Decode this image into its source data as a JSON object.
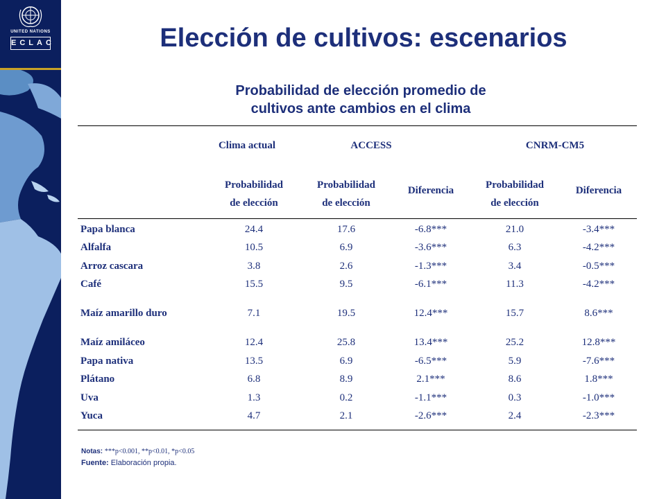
{
  "sidebar": {
    "org_label": "United Nations",
    "eclac_label": "ECLAC"
  },
  "header": {
    "title": "Elección de cultivos: escenarios"
  },
  "table": {
    "caption_line1": "Probabilidad de elección promedio de",
    "caption_line2": "cultivos ante cambios en el clima",
    "groups": [
      "Clima actual",
      "ACCESS",
      "CNRM-CM5"
    ],
    "subheaders": [
      [
        "Probabilidad",
        "de elección"
      ],
      [
        "Probabilidad",
        "de elección"
      ],
      [
        "Diferencia"
      ],
      [
        "Probabilidad",
        "de elección"
      ],
      [
        "Diferencia"
      ]
    ],
    "rows": [
      {
        "crop": "Papa blanca",
        "current": "24.4",
        "access_prob": "17.6",
        "access_diff": "-6.8***",
        "cnrm_prob": "21.0",
        "cnrm_diff": "-3.4***"
      },
      {
        "crop": "Alfalfa",
        "current": "10.5",
        "access_prob": "6.9",
        "access_diff": "-3.6***",
        "cnrm_prob": "6.3",
        "cnrm_diff": "-4.2***"
      },
      {
        "crop": "Arroz cascara",
        "current": "3.8",
        "access_prob": "2.6",
        "access_diff": "-1.3***",
        "cnrm_prob": "3.4",
        "cnrm_diff": "-0.5***"
      },
      {
        "crop": "Café",
        "current": "15.5",
        "access_prob": "9.5",
        "access_diff": "-6.1***",
        "cnrm_prob": "11.3",
        "cnrm_diff": "-4.2***"
      },
      {
        "crop": "Maíz amarillo duro",
        "current": "7.1",
        "access_prob": "19.5",
        "access_diff": "12.4***",
        "cnrm_prob": "15.7",
        "cnrm_diff": "8.6***"
      },
      {
        "crop": "Maíz amiláceo",
        "current": "12.4",
        "access_prob": "25.8",
        "access_diff": "13.4***",
        "cnrm_prob": "25.2",
        "cnrm_diff": "12.8***"
      },
      {
        "crop": "Papa nativa",
        "current": "13.5",
        "access_prob": "6.9",
        "access_diff": "-6.5***",
        "cnrm_prob": "5.9",
        "cnrm_diff": "-7.6***"
      },
      {
        "crop": "Plátano",
        "current": "6.8",
        "access_prob": "8.9",
        "access_diff": "2.1***",
        "cnrm_prob": "8.6",
        "cnrm_diff": "1.8***"
      },
      {
        "crop": "Uva",
        "current": "1.3",
        "access_prob": "0.2",
        "access_diff": "-1.1***",
        "cnrm_prob": "0.3",
        "cnrm_diff": "-1.0***"
      },
      {
        "crop": "Yuca",
        "current": "4.7",
        "access_prob": "2.1",
        "access_diff": "-2.6***",
        "cnrm_prob": "2.4",
        "cnrm_diff": "-2.3***"
      }
    ]
  },
  "footer": {
    "notes_label": "Notas:",
    "notes_text": "***p<0.001, **p<0.01, *p<0.05",
    "source_label": "Fuente:",
    "source_text": "Elaboración propia."
  },
  "colors": {
    "navy": "#0b1f5e",
    "title_blue": "#1d2f7a",
    "gold_rule": "#c9a227"
  }
}
